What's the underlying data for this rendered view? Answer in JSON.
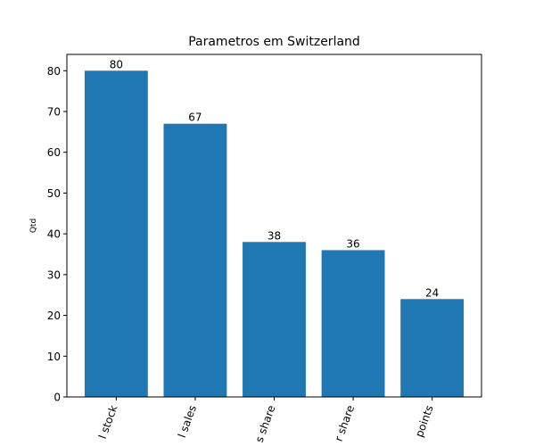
{
  "chart_data": {
    "type": "bar",
    "title": "Parametros em Switzerland",
    "xlabel": "",
    "ylabel": "Qtd",
    "categories": [
      "l stock",
      "l sales",
      "s share",
      "r share",
      "points"
    ],
    "values": [
      80,
      67,
      38,
      36,
      24
    ],
    "data_labels": [
      "80",
      "67",
      "38",
      "36",
      "24"
    ],
    "ylim": [
      0,
      84
    ],
    "yticks": [
      0,
      10,
      20,
      30,
      40,
      50,
      60,
      70,
      80
    ],
    "grid": false,
    "legend": "none",
    "bar_color": "#1f77b4"
  }
}
